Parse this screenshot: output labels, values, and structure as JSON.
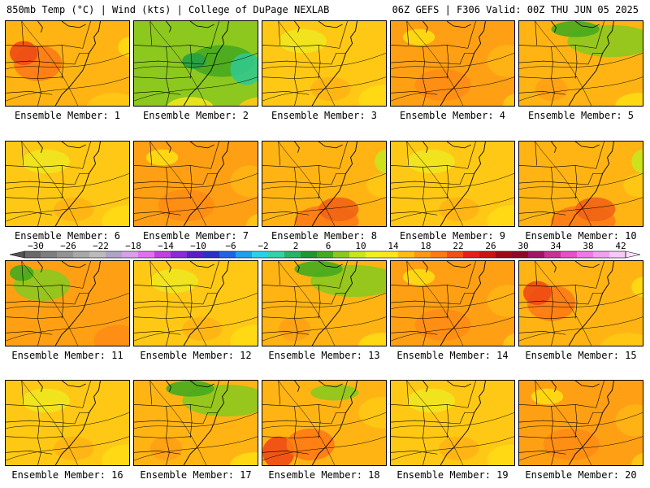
{
  "header": {
    "left": "850mb Temp (°C) | Wind (kts) | College of DuPage NEXLAB",
    "right": "06Z GEFS | F306 Valid: 00Z THU JUN 05 2025"
  },
  "panels": [
    {
      "label": "Ensemble Member: 1",
      "theme": "hot-nw"
    },
    {
      "label": "Ensemble Member: 2",
      "theme": "cool"
    },
    {
      "label": "Ensemble Member: 3",
      "theme": "mild"
    },
    {
      "label": "Ensemble Member: 4",
      "theme": "warm"
    },
    {
      "label": "Ensemble Member: 5",
      "theme": "cool-n"
    },
    {
      "label": "Ensemble Member: 6",
      "theme": "mild"
    },
    {
      "label": "Ensemble Member: 7",
      "theme": "warm"
    },
    {
      "label": "Ensemble Member: 8",
      "theme": "warm-s"
    },
    {
      "label": "Ensemble Member: 9",
      "theme": "mild"
    },
    {
      "label": "Ensemble Member: 10",
      "theme": "warm-s"
    },
    {
      "label": "Ensemble Member: 11",
      "theme": "cool-nw"
    },
    {
      "label": "Ensemble Member: 12",
      "theme": "mild"
    },
    {
      "label": "Ensemble Member: 13",
      "theme": "cool-n"
    },
    {
      "label": "Ensemble Member: 14",
      "theme": "warm"
    },
    {
      "label": "Ensemble Member: 15",
      "theme": "hot-nw"
    },
    {
      "label": "Ensemble Member: 16",
      "theme": "mild"
    },
    {
      "label": "Ensemble Member: 17",
      "theme": "cool-n"
    },
    {
      "label": "Ensemble Member: 18",
      "theme": "hot-w"
    },
    {
      "label": "Ensemble Member: 19",
      "theme": "mild"
    },
    {
      "label": "Ensemble Member: 20",
      "theme": "warm"
    }
  ],
  "colorbar": {
    "labels": [
      "-30",
      "-26",
      "-22",
      "-18",
      "-14",
      "-10",
      "-6",
      "-2",
      "2",
      "6",
      "10",
      "14",
      "18",
      "22",
      "26",
      "30",
      "34",
      "38",
      "42"
    ],
    "colors": [
      "#686868",
      "#7e7e7e",
      "#939393",
      "#a8a8a8",
      "#bcbcbc",
      "#b0a3c8",
      "#d8a0e8",
      "#e070f0",
      "#c040e0",
      "#8a2ad8",
      "#5a1ec8",
      "#2832c8",
      "#1e64e6",
      "#1ea0f0",
      "#28d2e6",
      "#32d2aa",
      "#28b464",
      "#1e9632",
      "#46aa1e",
      "#8cc81e",
      "#c8e61e",
      "#f0f01e",
      "#ffe61e",
      "#ffbe14",
      "#ff9614",
      "#ff7814",
      "#f05014",
      "#e61e1e",
      "#c81414",
      "#a00a14",
      "#8c0a28",
      "#a01464",
      "#c83296",
      "#e650c8",
      "#f078e6",
      "#f0a0f0",
      "#f8c8f8"
    ]
  }
}
